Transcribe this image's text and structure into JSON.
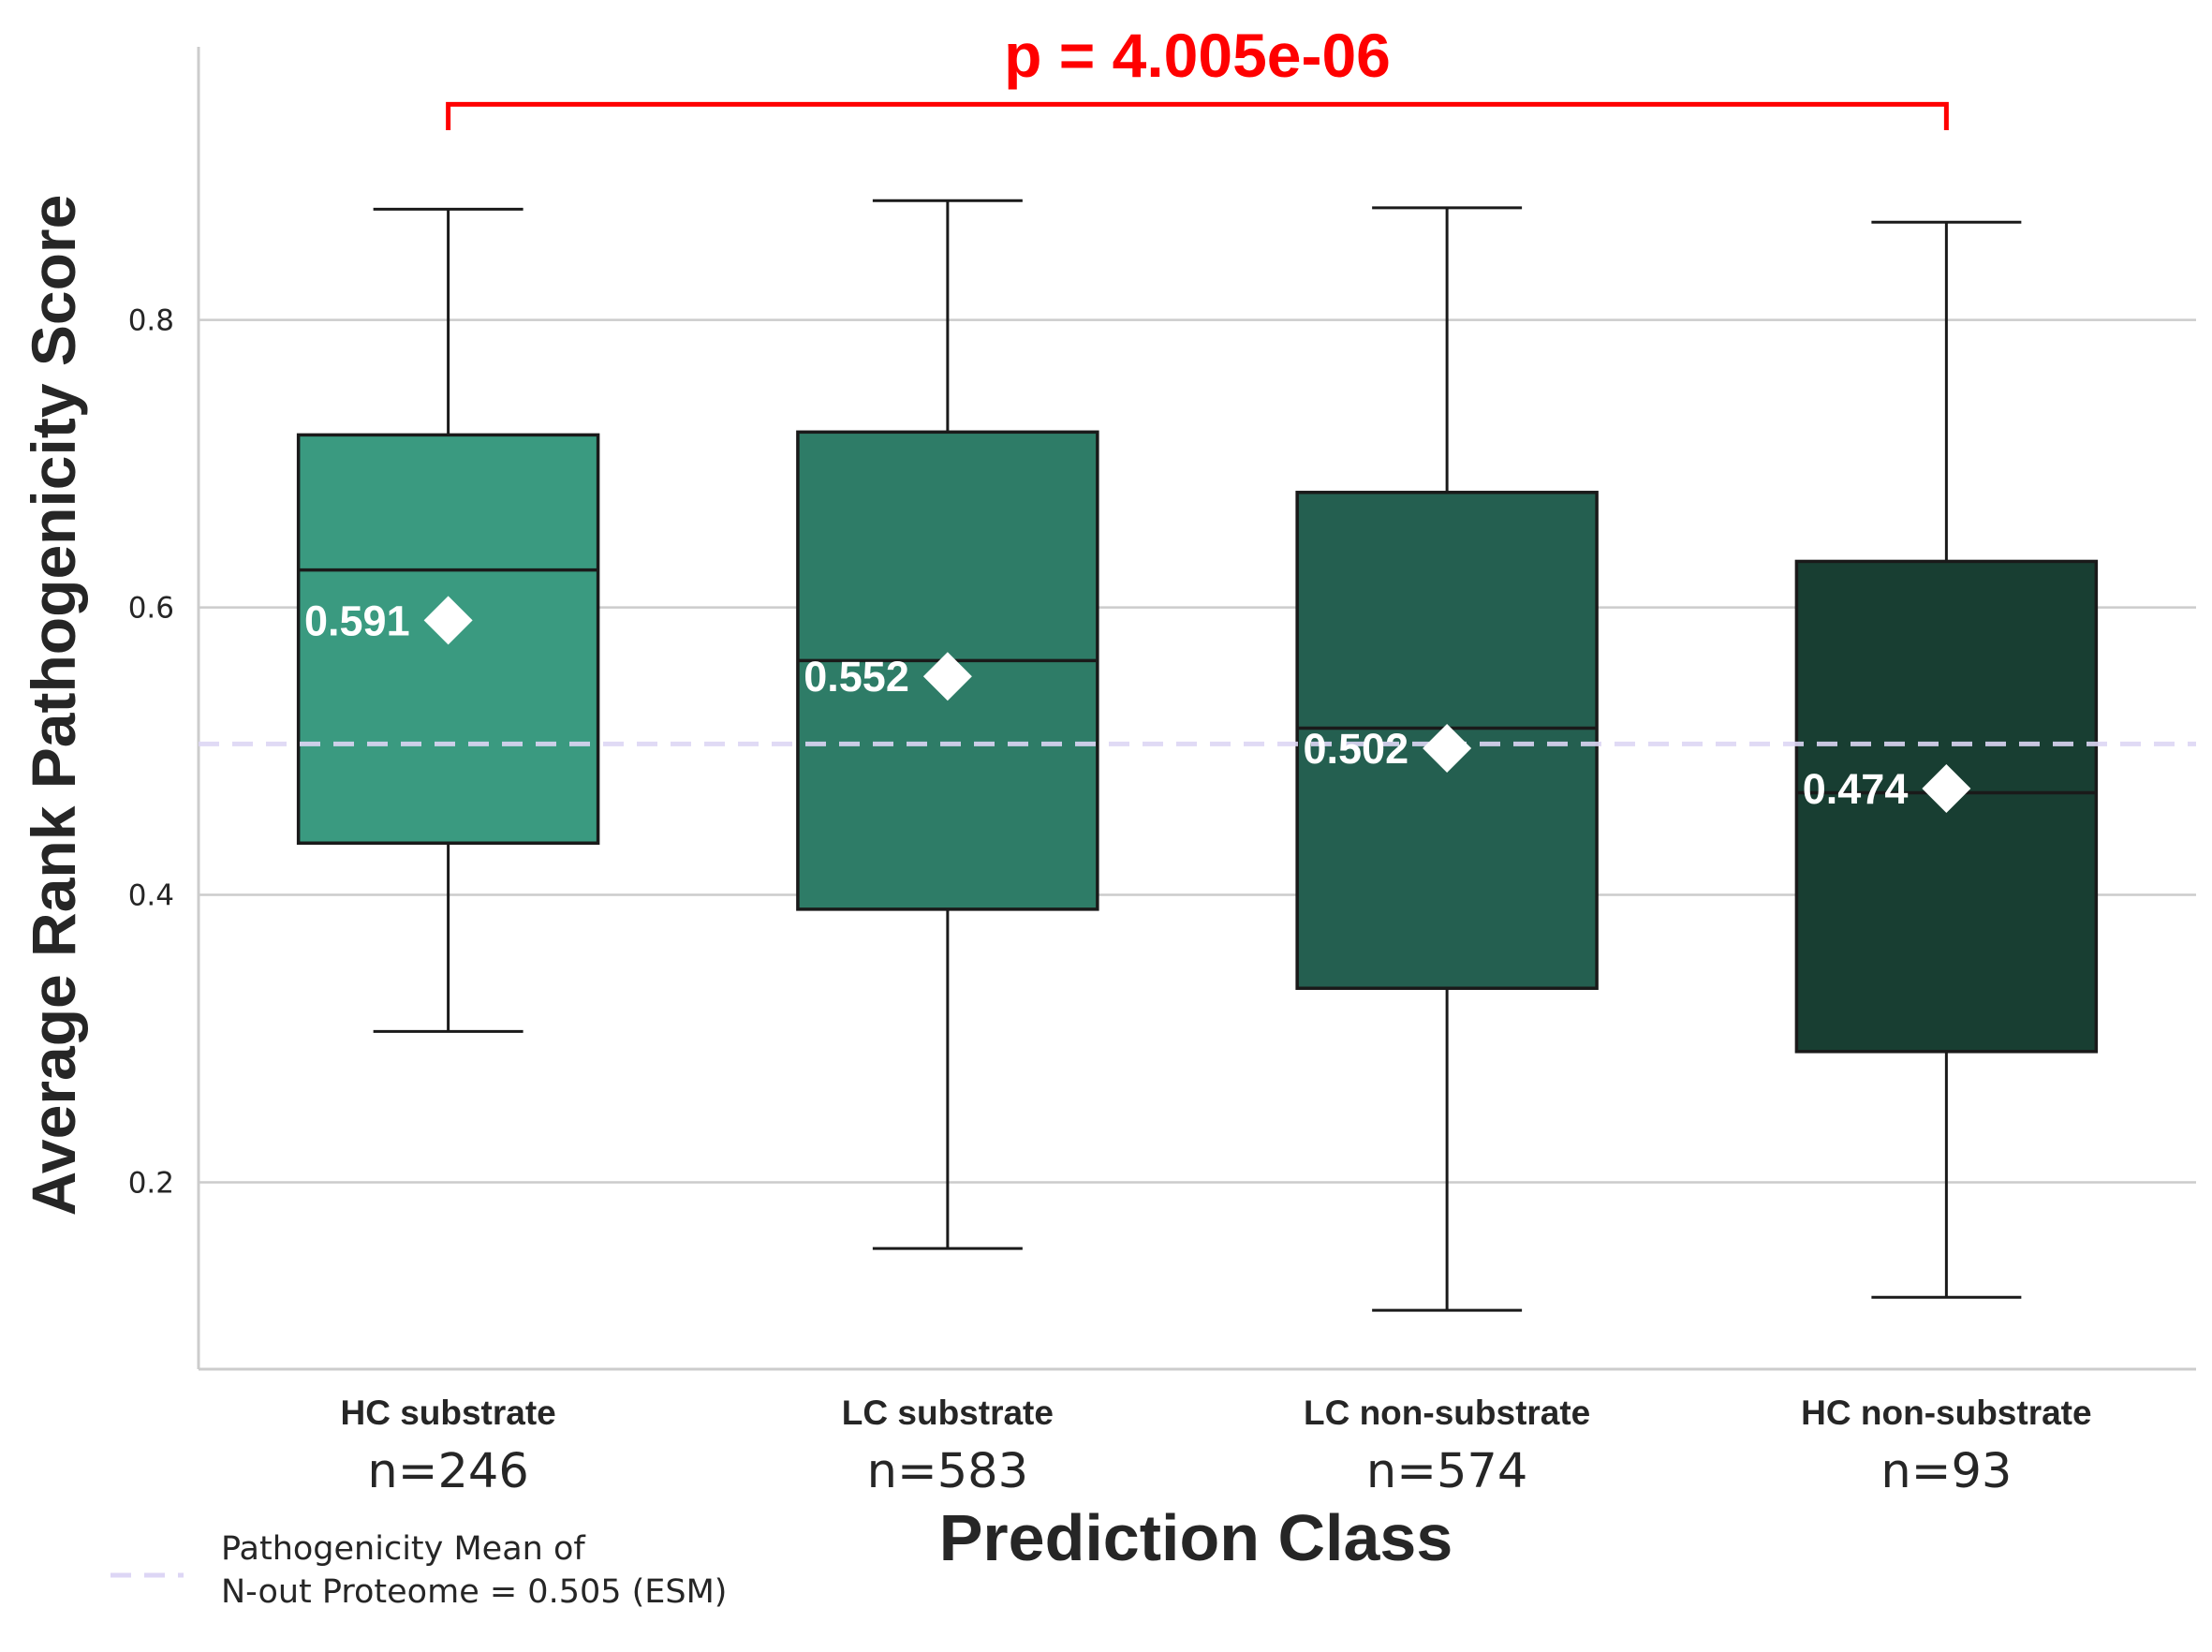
{
  "chart_data": {
    "type": "box",
    "ylabel": "Average Rank Pathogenicity Score",
    "xlabel": "Prediction Class",
    "ylim": [
      0.07,
      0.99
    ],
    "yticks": [
      0.2,
      0.4,
      0.6,
      0.8
    ],
    "ytick_labels": [
      "0.2",
      "0.4",
      "0.6",
      "0.8"
    ],
    "grid": "horizontal",
    "categories": [
      "HC substrate",
      "LC substrate",
      "LC non-substrate",
      "HC non-substrate"
    ],
    "counts": [
      "n=246",
      "n=583",
      "n=574",
      "n=93"
    ],
    "boxes": [
      {
        "whisker_low": 0.305,
        "q1": 0.436,
        "median": 0.626,
        "q3": 0.72,
        "whisker_high": 0.877,
        "mean": 0.591,
        "mean_label": "0.591",
        "color": "#3a9a80"
      },
      {
        "whisker_low": 0.154,
        "q1": 0.39,
        "median": 0.563,
        "q3": 0.722,
        "whisker_high": 0.883,
        "mean": 0.552,
        "mean_label": "0.552",
        "color": "#2e7c67"
      },
      {
        "whisker_low": 0.111,
        "q1": 0.335,
        "median": 0.516,
        "q3": 0.68,
        "whisker_high": 0.878,
        "mean": 0.502,
        "mean_label": "0.502",
        "color": "#245f50"
      },
      {
        "whisker_low": 0.12,
        "q1": 0.291,
        "median": 0.471,
        "q3": 0.632,
        "whisker_high": 0.868,
        "mean": 0.474,
        "mean_label": "0.474",
        "color": "#183e32"
      }
    ],
    "reference_line": {
      "value": 0.505,
      "color": "#ddd6f5"
    },
    "legend": {
      "placement": "bottom-left",
      "lines": [
        "Pathogenicity Mean of",
        "N-out Proteome = 0.505 (ESM)"
      ]
    },
    "annotation": {
      "text": "p = 4.005e-06",
      "color": "#ff0000",
      "from": "HC substrate",
      "to": "HC non-substrate",
      "y_top": 0.95,
      "y_bottom": 0.932
    }
  }
}
